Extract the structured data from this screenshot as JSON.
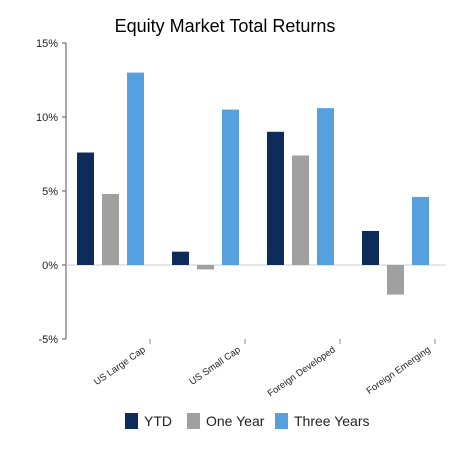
{
  "chart_data": {
    "type": "bar",
    "title": "Equity Market Total Returns",
    "xlabel": "",
    "ylabel": "",
    "categories": [
      "US Large Cap",
      "US Small Cap",
      "Foreign Developed",
      "Foreign Emerging"
    ],
    "series": [
      {
        "name": "YTD",
        "color": "#0d2c5a",
        "values": [
          7.6,
          0.9,
          9.0,
          2.3
        ]
      },
      {
        "name": "One Year",
        "color": "#a0a0a0",
        "values": [
          4.8,
          -0.3,
          7.4,
          -2.0
        ]
      },
      {
        "name": "Three Years",
        "color": "#56a0e0",
        "values": [
          13.0,
          10.5,
          10.6,
          4.6
        ]
      }
    ],
    "ylim": [
      -5,
      15
    ],
    "yticks": [
      -5,
      0,
      5,
      10,
      15
    ],
    "ytick_labels": [
      "-5%",
      "0%",
      "5%",
      "10%",
      "15%"
    ],
    "grid": false,
    "legend_position": "bottom"
  }
}
